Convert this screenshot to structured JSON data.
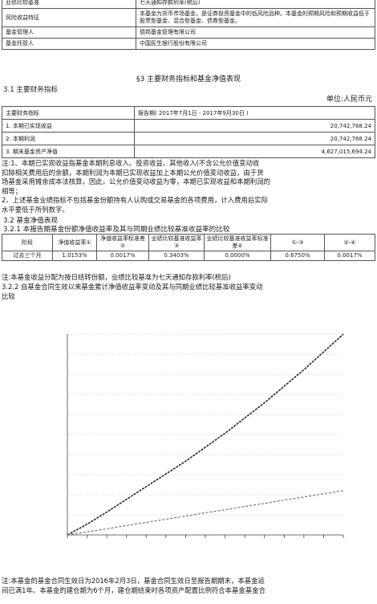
{
  "top_table": [
    {
      "label": "业绩比较基准",
      "value": "七天通知存款利率(税后)"
    },
    {
      "label": "风险收益特征",
      "value": "本基金为货币市场基金，是证券投资基金中的低风险品种。本基金的预期风险和预期收益低于股票型基金、混合型基金、债券型基金。"
    },
    {
      "label": "基金管理人",
      "value": "德邦基金管理有限公司"
    },
    {
      "label": "基金托管人",
      "value": "中国民生银行股份有限公司"
    }
  ],
  "section3_title": "§3  主要财务指标和基金净值表现",
  "s31_title": "3.1  主要财务指标",
  "unit": "单位:人民币元",
  "fin_table": {
    "headers": [
      "主要财务指标",
      "报告期( 2017年7月1日 - 2017年9月30日 )"
    ],
    "rows": [
      {
        "label": "1. 本期已实现收益",
        "value": "20,742,768.24"
      },
      {
        "label": "2. 本期利润",
        "value": "20,742,768.24"
      },
      {
        "label": "3. 期末基金资产净值",
        "value": "4,627,015,694.24"
      }
    ]
  },
  "notes1": [
    "注:1、本期已实现收益指基金本期利息收入、投资收益、其他收入(不含公允价值变动收",
    "扣除相关费用后的余额，本期利润为本期已实现收益加上本期公允价值变动收益，由于货",
    "场基金采用摊余成本法核算，因此，公允价值变动收益为零，本期已实现收益和本期利润的",
    "相等；",
    "2、上述基金业绩指标不包括基金份额持有人认购或交易基金的各项费用，计入费用后实际",
    "水平要低于所列数字。"
  ],
  "s32_title": "3.2  基金净值表现",
  "s321_title": "3.2.1  本报告期基金份额净值收益率及其与同期业绩比较基准收益率的比较",
  "perf_table": {
    "headers": [
      "阶段",
      "净值收益率①",
      "净值收益率标准差②",
      "业绩比较基准收益率③",
      "业绩比较基准收益率标准差④",
      "①-③",
      "②-④"
    ],
    "row": [
      "过去三个月",
      "1.0153%",
      "0.0017%",
      "0.3403%",
      "0.0000%",
      "0.6750%",
      "0.0017%"
    ]
  },
  "note2": "注:本基金收益分配为按日结转份额，业绩比较基准为七天通知存款利率(税后)",
  "s322_title_1": "3.2.2  自基金合同生效以来基金累计净值收益率变动及其与同期业绩比较基准收益率变动",
  "s322_title_2": "比较",
  "chart_data": {
    "type": "line",
    "title": "",
    "xlabel": "",
    "ylabel": "",
    "series": [
      {
        "name": "",
        "values": [
          0.0,
          0.42,
          0.9,
          1.4,
          1.9,
          2.4,
          2.9,
          3.45,
          4.0,
          4.6,
          5.2,
          5.85,
          6.5,
          7.2,
          7.9
        ]
      },
      {
        "name": "",
        "values": [
          0.0,
          0.12,
          0.24,
          0.37,
          0.49,
          0.62,
          0.74,
          0.87,
          0.99,
          1.12,
          1.24,
          1.37,
          1.49,
          1.62,
          1.74
        ]
      }
    ],
    "grid": true
  },
  "final_note_1": "注:本基金的基金合同生效日为2016年2月3日，基金合同生效日至报告期期末，本基金运",
  "final_note_2": "间已满1年。本基金的建仓期为6个月，建仓期结束时各项资产配置比例符合本基金基金合",
  "colors": {
    "series1": "#2a2a2a",
    "series2": "#6a6a6a"
  }
}
